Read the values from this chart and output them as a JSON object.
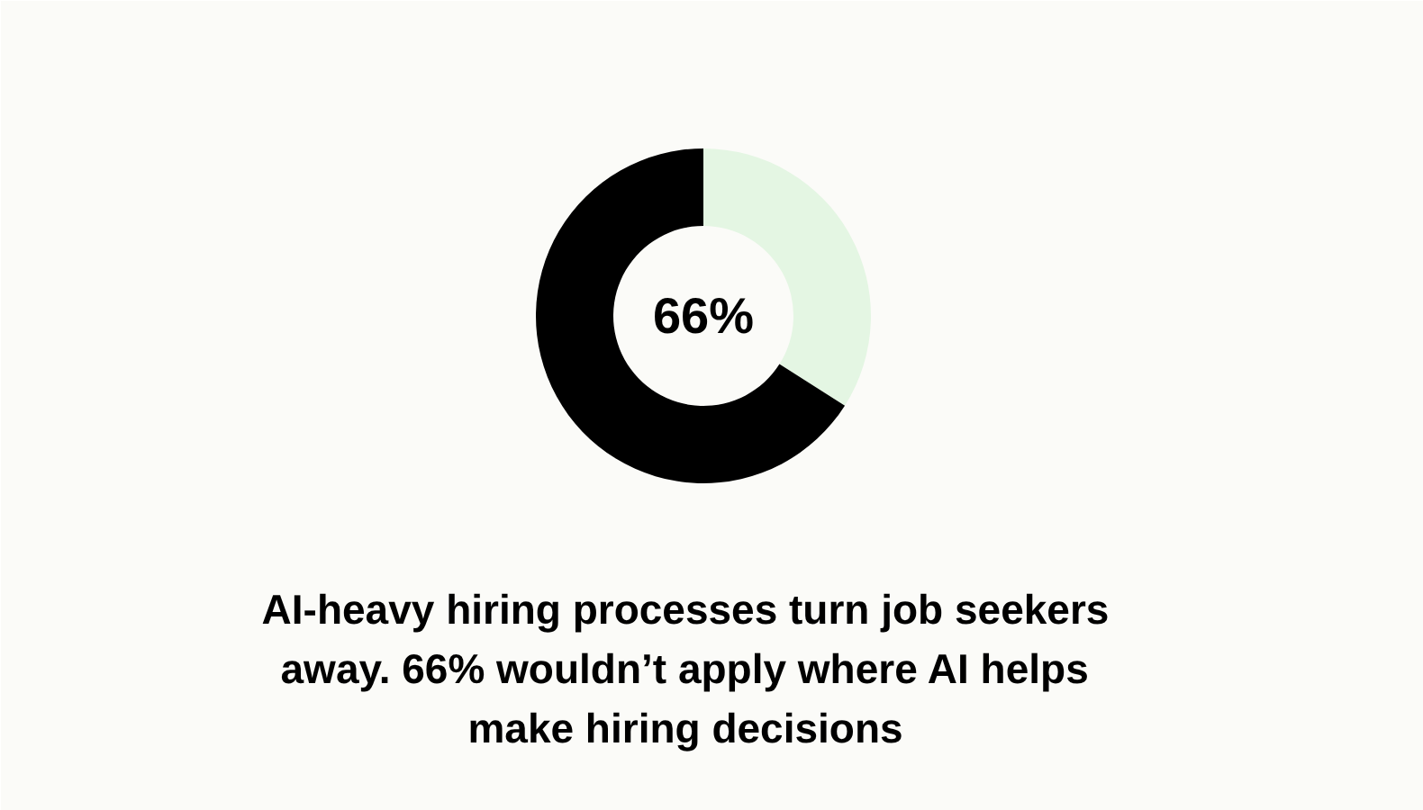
{
  "chart_data": {
    "type": "donut",
    "categories": [
      null,
      null
    ],
    "values": [
      34,
      66
    ],
    "colors": [
      "#e4f6e3",
      "#000000"
    ],
    "annotations": [
      "66%"
    ],
    "title": "AI-heavy hiring processes turn job seekers\naway. 66% wouldn’t apply where AI helps\nmake hiring decisions"
  }
}
